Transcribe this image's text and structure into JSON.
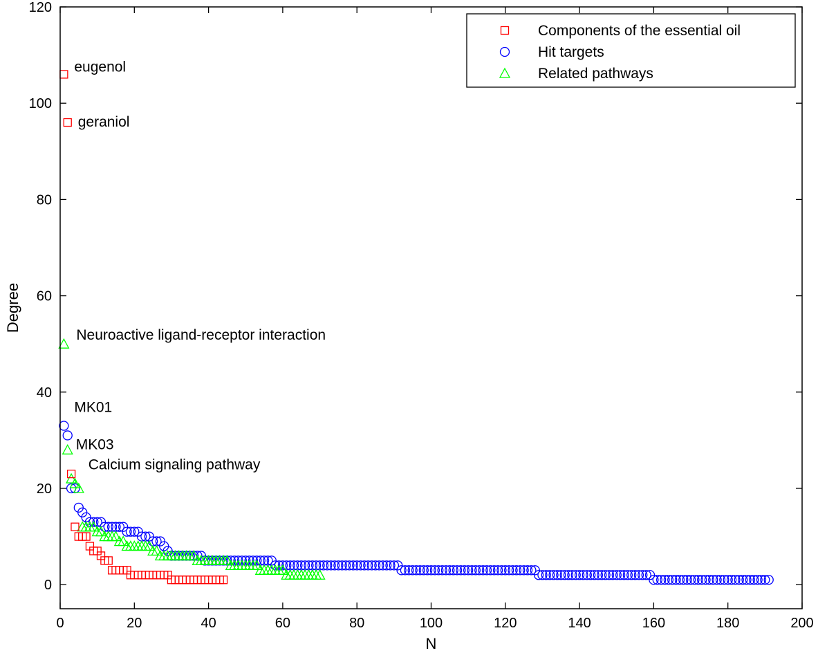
{
  "chart_data": {
    "type": "scatter",
    "xlabel": "N",
    "ylabel": "Degree",
    "xlim": [
      0,
      200
    ],
    "ylim": [
      -5,
      120
    ],
    "xticks": [
      0,
      20,
      40,
      60,
      80,
      100,
      120,
      140,
      160,
      180,
      200
    ],
    "yticks": [
      0,
      20,
      40,
      60,
      80,
      100,
      120
    ],
    "grid": false,
    "legend_position": "top-right",
    "series": [
      {
        "name": "Components of the essential oil",
        "marker": "square",
        "color": "#ff0000",
        "x": [
          1,
          2,
          3,
          4,
          5,
          6,
          7,
          8,
          9,
          10,
          11,
          12,
          13,
          14,
          15,
          16,
          17,
          18,
          19,
          20,
          21,
          22,
          23,
          24,
          25,
          26,
          27,
          28,
          29,
          30,
          31,
          32,
          33,
          34,
          35,
          36,
          37,
          38,
          39,
          40,
          41,
          42,
          43,
          44
        ],
        "y": [
          106,
          96,
          23,
          12,
          10,
          10,
          10,
          8,
          7,
          7,
          6,
          5,
          5,
          3,
          3,
          3,
          3,
          3,
          2,
          2,
          2,
          2,
          2,
          2,
          2,
          2,
          2,
          2,
          2,
          1,
          1,
          1,
          1,
          1,
          1,
          1,
          1,
          1,
          1,
          1,
          1,
          1,
          1,
          1
        ]
      },
      {
        "name": "Hit targets",
        "marker": "circle",
        "color": "#0000ff",
        "x": [
          1,
          2,
          3,
          4,
          5,
          6,
          7,
          8,
          9,
          10,
          11,
          12,
          13,
          14,
          15,
          16,
          17,
          18,
          19,
          20,
          21,
          22,
          23,
          24,
          25,
          26,
          27,
          28,
          29,
          30,
          31,
          32,
          33,
          34,
          35,
          36,
          37,
          38,
          39,
          40,
          41,
          42,
          43,
          44,
          45,
          46,
          47,
          48,
          49,
          50,
          51,
          52,
          53,
          54,
          55,
          56,
          57,
          58,
          59,
          60,
          61,
          62,
          63,
          64,
          65,
          66,
          67,
          68,
          69,
          70,
          71,
          72,
          73,
          74,
          75,
          76,
          77,
          78,
          79,
          80,
          81,
          82,
          83,
          84,
          85,
          86,
          87,
          88,
          89,
          90,
          91,
          92,
          93,
          94,
          95,
          96,
          97,
          98,
          99,
          100,
          101,
          102,
          103,
          104,
          105,
          106,
          107,
          108,
          109,
          110,
          111,
          112,
          113,
          114,
          115,
          116,
          117,
          118,
          119,
          120,
          121,
          122,
          123,
          124,
          125,
          126,
          127,
          128,
          129,
          130,
          131,
          132,
          133,
          134,
          135,
          136,
          137,
          138,
          139,
          140,
          141,
          142,
          143,
          144,
          145,
          146,
          147,
          148,
          149,
          150,
          151,
          152,
          153,
          154,
          155,
          156,
          157,
          158,
          159,
          160,
          161,
          162,
          163,
          164,
          165,
          166,
          167,
          168,
          169,
          170,
          171,
          172,
          173,
          174,
          175,
          176,
          177,
          178,
          179,
          180,
          181,
          182,
          183,
          184,
          185,
          186,
          187,
          188,
          189,
          190,
          191
        ],
        "y": [
          33,
          31,
          20,
          20,
          16,
          15,
          14,
          13,
          13,
          13,
          13,
          12,
          12,
          12,
          12,
          12,
          12,
          11,
          11,
          11,
          11,
          10,
          10,
          10,
          9,
          9,
          9,
          8,
          7,
          6,
          6,
          6,
          6,
          6,
          6,
          6,
          6,
          6,
          5,
          5,
          5,
          5,
          5,
          5,
          5,
          5,
          5,
          5,
          5,
          5,
          5,
          5,
          5,
          5,
          5,
          5,
          5,
          4,
          4,
          4,
          4,
          4,
          4,
          4,
          4,
          4,
          4,
          4,
          4,
          4,
          4,
          4,
          4,
          4,
          4,
          4,
          4,
          4,
          4,
          4,
          4,
          4,
          4,
          4,
          4,
          4,
          4,
          4,
          4,
          4,
          4,
          3,
          3,
          3,
          3,
          3,
          3,
          3,
          3,
          3,
          3,
          3,
          3,
          3,
          3,
          3,
          3,
          3,
          3,
          3,
          3,
          3,
          3,
          3,
          3,
          3,
          3,
          3,
          3,
          3,
          3,
          3,
          3,
          3,
          3,
          3,
          3,
          3,
          2,
          2,
          2,
          2,
          2,
          2,
          2,
          2,
          2,
          2,
          2,
          2,
          2,
          2,
          2,
          2,
          2,
          2,
          2,
          2,
          2,
          2,
          2,
          2,
          2,
          2,
          2,
          2,
          2,
          2,
          2,
          1,
          1,
          1,
          1,
          1,
          1,
          1,
          1,
          1,
          1,
          1,
          1,
          1,
          1,
          1,
          1,
          1,
          1,
          1,
          1,
          1,
          1,
          1,
          1,
          1,
          1,
          1,
          1,
          1,
          1,
          1,
          1
        ]
      },
      {
        "name": "Related pathways",
        "marker": "triangle",
        "color": "#00ff00",
        "x": [
          1,
          2,
          3,
          4,
          5,
          6,
          7,
          8,
          9,
          10,
          11,
          12,
          13,
          14,
          15,
          16,
          17,
          18,
          19,
          20,
          21,
          22,
          23,
          24,
          25,
          26,
          27,
          28,
          29,
          30,
          31,
          32,
          33,
          34,
          35,
          36,
          37,
          38,
          39,
          40,
          41,
          42,
          43,
          44,
          45,
          46,
          47,
          48,
          49,
          50,
          51,
          52,
          53,
          54,
          55,
          56,
          57,
          58,
          59,
          60,
          61,
          62,
          63,
          64,
          65,
          66,
          67,
          68,
          69,
          70
        ],
        "y": [
          50,
          28,
          22,
          21,
          20,
          12,
          12,
          12,
          12,
          11,
          11,
          10,
          10,
          10,
          10,
          9,
          9,
          8,
          8,
          8,
          8,
          8,
          8,
          8,
          7,
          7,
          6,
          6,
          6,
          6,
          6,
          6,
          6,
          6,
          6,
          6,
          5,
          5,
          5,
          5,
          5,
          5,
          5,
          5,
          5,
          4,
          4,
          4,
          4,
          4,
          4,
          4,
          4,
          3,
          3,
          3,
          3,
          3,
          3,
          3,
          2,
          2,
          2,
          2,
          2,
          2,
          2,
          2,
          2,
          2
        ]
      }
    ],
    "annotations": [
      {
        "text": "eugenol",
        "x": 1,
        "y": 106
      },
      {
        "text": "geraniol",
        "x": 2,
        "y": 96
      },
      {
        "text": "Neuroactive ligand-receptor interaction",
        "x": 1,
        "y": 50
      },
      {
        "text": "MK01",
        "x": 1,
        "y": 33
      },
      {
        "text": "MK03",
        "x": 2,
        "y": 31
      },
      {
        "text": "Calcium signaling pathway",
        "x": 2,
        "y": 28
      }
    ]
  }
}
